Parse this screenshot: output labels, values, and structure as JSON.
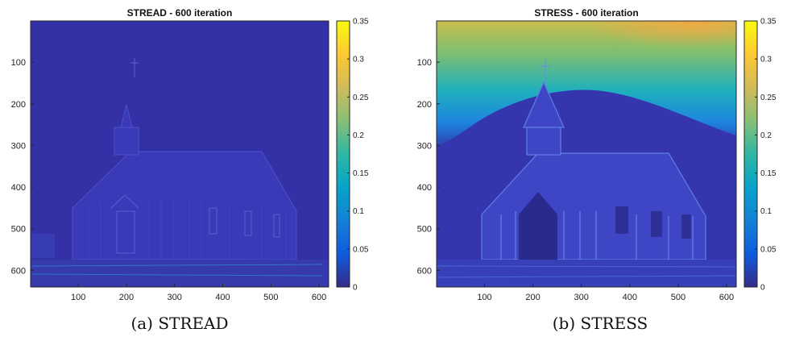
{
  "chart_data": [
    {
      "type": "heatmap",
      "title": "STREAD - 600 iteration",
      "caption": "(a) STREAD",
      "x_ticks": [
        100,
        200,
        300,
        400,
        500,
        600
      ],
      "y_ticks": [
        100,
        200,
        300,
        400,
        500,
        600
      ],
      "xlim": [
        1,
        620
      ],
      "ylim": [
        1,
        640
      ],
      "colorbar": {
        "min": 0,
        "max": 0.35,
        "ticks": [
          0,
          0.05,
          0.1,
          0.15,
          0.2,
          0.25,
          0.3,
          0.35
        ],
        "colormap": "parula"
      },
      "background_level": 0.02
    },
    {
      "type": "heatmap",
      "title": "STRESS - 600 iteration",
      "caption": "(b) STRESS",
      "x_ticks": [
        100,
        200,
        300,
        400,
        500,
        600
      ],
      "y_ticks": [
        100,
        200,
        300,
        400,
        500,
        600
      ],
      "xlim": [
        1,
        620
      ],
      "ylim": [
        1,
        640
      ],
      "colorbar": {
        "min": 0,
        "max": 0.35,
        "ticks": [
          0,
          0.05,
          0.1,
          0.15,
          0.2,
          0.25,
          0.3,
          0.35
        ],
        "colormap": "parula"
      },
      "background_level": 0.03,
      "sky_level_top": 0.26
    }
  ],
  "colors": {
    "parula": [
      "#352a87",
      "#0f5cdd",
      "#1481d6",
      "#06a4ca",
      "#2eb7a4",
      "#87bf77",
      "#d1bb59",
      "#fec832",
      "#f9fb0e"
    ]
  }
}
